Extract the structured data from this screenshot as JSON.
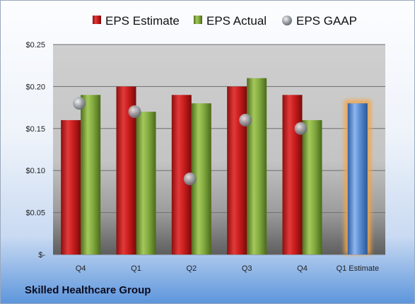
{
  "company": "Skilled Healthcare Group",
  "colors": {
    "estimate": "#cc1e1e",
    "actual": "#7ea43c",
    "gaap": "#9aa0a8",
    "estimate_highlight_bar": "#5b8fd6",
    "highlight_glow": "#f2a54a"
  },
  "chart_data": {
    "type": "bar",
    "categories": [
      "Q4",
      "Q1",
      "Q2",
      "Q3",
      "Q4",
      "Q1 Estimate"
    ],
    "series": [
      {
        "name": "EPS Estimate",
        "values": [
          0.16,
          0.2,
          0.19,
          0.2,
          0.19,
          0.18
        ]
      },
      {
        "name": "EPS Actual",
        "values": [
          0.19,
          0.17,
          0.18,
          0.21,
          0.16,
          null
        ]
      },
      {
        "name": "EPS GAAP",
        "values": [
          0.18,
          0.17,
          0.09,
          0.16,
          0.15,
          null
        ]
      }
    ],
    "y_ticks": [
      {
        "value": 0,
        "label": "$-"
      },
      {
        "value": 0.05,
        "label": "$0.05"
      },
      {
        "value": 0.1,
        "label": "$0.10"
      },
      {
        "value": 0.15,
        "label": "$0.15"
      },
      {
        "value": 0.2,
        "label": "$0.20"
      },
      {
        "value": 0.25,
        "label": "$0.25"
      }
    ],
    "ylim": [
      0,
      0.25
    ],
    "grid": true,
    "legend_position": "top",
    "title": "",
    "xlabel": "",
    "ylabel": ""
  }
}
